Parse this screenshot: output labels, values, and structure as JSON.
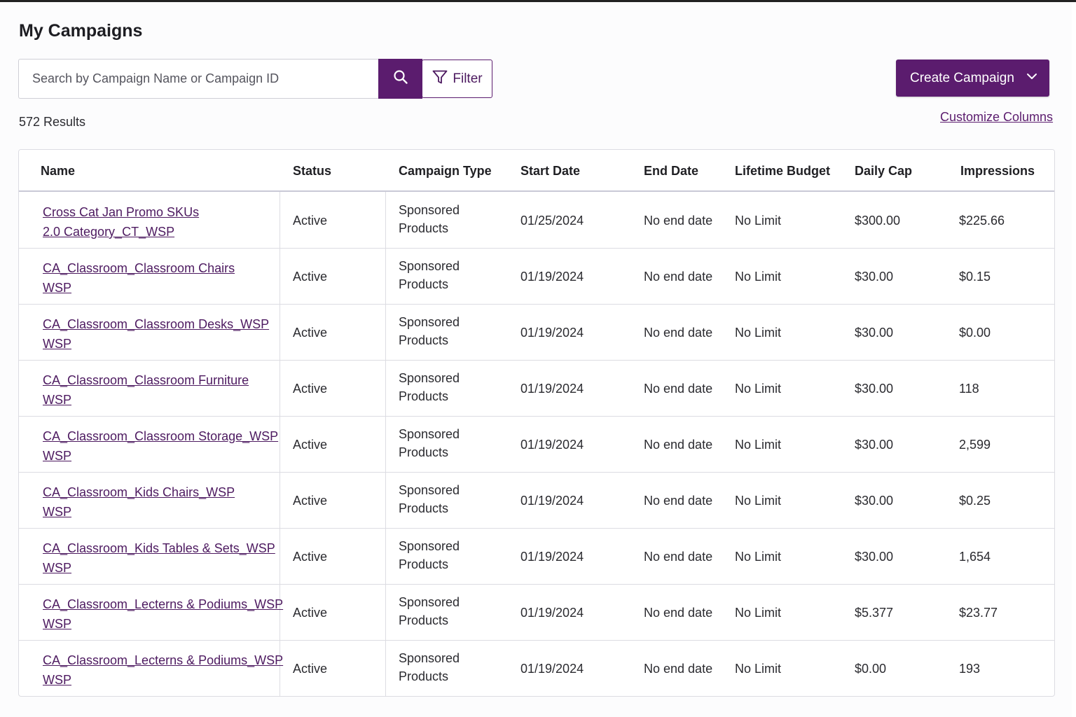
{
  "page": {
    "title": "My Campaigns",
    "results_count": "572 Results",
    "customize_columns": "Customize Columns"
  },
  "search": {
    "placeholder": "Search by Campaign Name or Campaign ID",
    "value": ""
  },
  "toolbar": {
    "filter_label": "Filter",
    "create_label": "Create Campaign"
  },
  "table": {
    "columns": [
      "Name",
      "Status",
      "Campaign Type",
      "Start Date",
      "End Date",
      "Lifetime Budget",
      "Daily Cap",
      "Impressions"
    ],
    "rows": [
      {
        "name_line1": "Cross Cat Jan Promo SKUs",
        "name_line2": "2.0 Category_CT_WSP",
        "status": "Active",
        "type_line1": "Sponsored",
        "type_line2": "Products",
        "start": "01/25/2024",
        "end": "No end date",
        "budget": "No Limit",
        "cap": "$300.00",
        "impressions": "$225.66"
      },
      {
        "name_line1": "CA_Classroom_Classroom Chairs",
        "name_line2": "WSP",
        "status": "Active",
        "type_line1": "Sponsored",
        "type_line2": "Products",
        "start": "01/19/2024",
        "end": "No end date",
        "budget": "No Limit",
        "cap": "$30.00",
        "impressions": "$0.15"
      },
      {
        "name_line1": "CA_Classroom_Classroom Desks_WSP",
        "name_line2": "WSP",
        "status": "Active",
        "type_line1": "Sponsored",
        "type_line2": "Products",
        "start": "01/19/2024",
        "end": "No end date",
        "budget": "No Limit",
        "cap": "$30.00",
        "impressions": "$0.00"
      },
      {
        "name_line1": "CA_Classroom_Classroom Furniture",
        "name_line2": "WSP",
        "status": "Active",
        "type_line1": "Sponsored",
        "type_line2": "Products",
        "start": "01/19/2024",
        "end": "No end date",
        "budget": "No Limit",
        "cap": "$30.00",
        "impressions": "118"
      },
      {
        "name_line1": "CA_Classroom_Classroom Storage_WSP",
        "name_line2": "WSP",
        "status": "Active",
        "type_line1": "Sponsored",
        "type_line2": "Products",
        "start": "01/19/2024",
        "end": "No end date",
        "budget": "No Limit",
        "cap": "$30.00",
        "impressions": "2,599"
      },
      {
        "name_line1": "CA_Classroom_Kids Chairs_WSP",
        "name_line2": "WSP",
        "status": "Active",
        "type_line1": "Sponsored",
        "type_line2": "Products",
        "start": "01/19/2024",
        "end": "No end date",
        "budget": "No Limit",
        "cap": "$30.00",
        "impressions": "$0.25"
      },
      {
        "name_line1": "CA_Classroom_Kids Tables & Sets_WSP",
        "name_line2": "WSP",
        "status": "Active",
        "type_line1": "Sponsored",
        "type_line2": "Products",
        "start": "01/19/2024",
        "end": "No end date",
        "budget": "No Limit",
        "cap": "$30.00",
        "impressions": "1,654"
      },
      {
        "name_line1": "CA_Classroom_Lecterns & Podiums_WSP",
        "name_line2": "WSP",
        "status": "Active",
        "type_line1": "Sponsored",
        "type_line2": "Products",
        "start": "01/19/2024",
        "end": "No end date",
        "budget": "No Limit",
        "cap": "$5.377",
        "impressions": "$23.77"
      },
      {
        "name_line1": "CA_Classroom_Lecterns & Podiums_WSP",
        "name_line2": "WSP",
        "status": "Active",
        "type_line1": "Sponsored",
        "type_line2": "Products",
        "start": "01/19/2024",
        "end": "No end date",
        "budget": "No Limit",
        "cap": "$0.00",
        "impressions": "193"
      }
    ]
  },
  "icons": {
    "search": "search-icon",
    "filter": "filter-icon",
    "dropdown": "chevron-down-icon"
  },
  "colors": {
    "accent": "#5b1c6e"
  }
}
